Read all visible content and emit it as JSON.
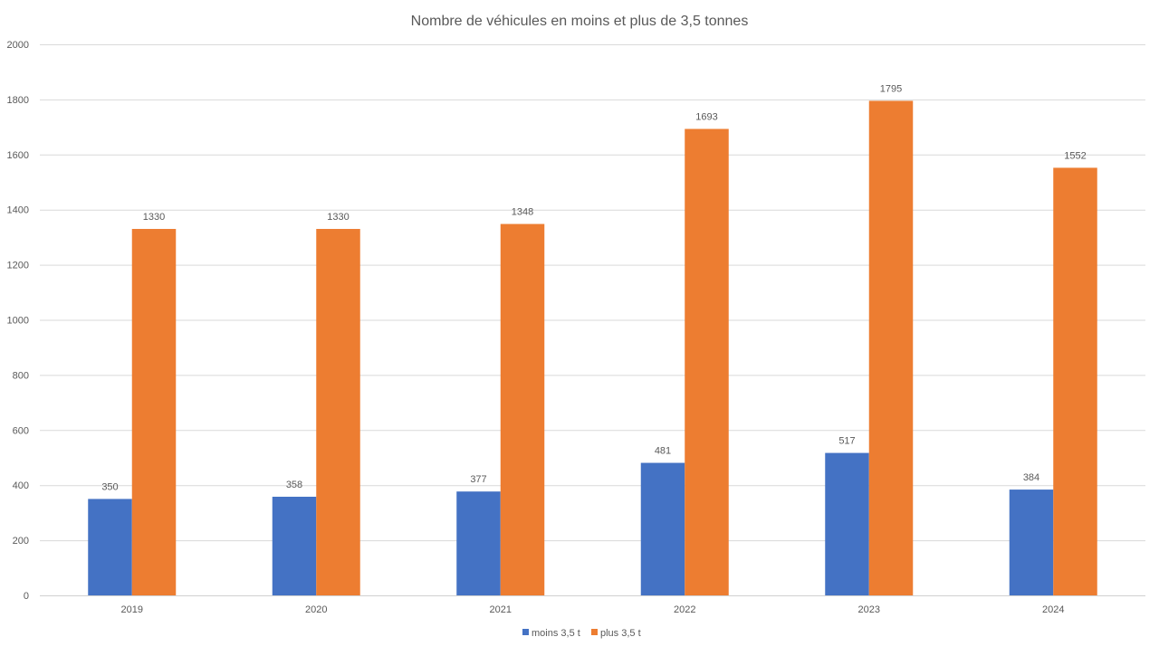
{
  "chart_data": {
    "type": "bar",
    "title": "Nombre de véhicules en moins et plus de 3,5 tonnes",
    "xlabel": "",
    "ylabel": "",
    "ylim": [
      0,
      2000
    ],
    "ytick_step": 200,
    "grid": true,
    "legend_position": "bottom",
    "categories": [
      "2019",
      "2020",
      "2021",
      "2022",
      "2023",
      "2024"
    ],
    "series": [
      {
        "name": "moins 3,5 t",
        "color": "#4472C4",
        "values": [
          350,
          358,
          377,
          481,
          517,
          384
        ]
      },
      {
        "name": "plus 3,5 t",
        "color": "#ED7D31",
        "values": [
          1330,
          1330,
          1348,
          1693,
          1795,
          1552
        ]
      }
    ]
  }
}
